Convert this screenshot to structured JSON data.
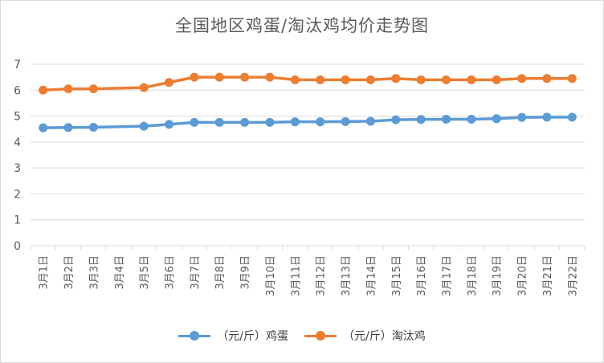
{
  "chart_data": {
    "type": "line",
    "title": "全国地区鸡蛋/淘汰鸡均价走势图",
    "categories": [
      "3月1日",
      "3月2日",
      "3月3日",
      "3月4日",
      "3月5日",
      "3月6日",
      "3月7日",
      "3月8日",
      "3月9日",
      "3月10日",
      "3月11日",
      "3月12日",
      "3月13日",
      "3月14日",
      "3月15日",
      "3月16日",
      "3月17日",
      "3月18日",
      "3月19日",
      "3月20日",
      "3月21日",
      "3月22日"
    ],
    "ylim": [
      0,
      7
    ],
    "yticks": [
      0,
      1,
      2,
      3,
      4,
      5,
      6,
      7
    ],
    "grid": true,
    "legend_position": "bottom",
    "series": [
      {
        "name": "（元/斤）鸡蛋",
        "color": "#5b9bd5",
        "values": [
          4.55,
          4.56,
          4.57,
          null,
          4.61,
          4.68,
          4.76,
          4.76,
          4.76,
          4.76,
          4.78,
          4.78,
          4.79,
          4.8,
          4.86,
          4.87,
          4.88,
          4.88,
          4.9,
          4.95,
          4.96,
          4.96
        ]
      },
      {
        "name": "（元/斤）淘汰鸡",
        "color": "#ed7d31",
        "values": [
          6.0,
          6.05,
          6.05,
          null,
          6.1,
          6.3,
          6.5,
          6.5,
          6.5,
          6.5,
          6.4,
          6.4,
          6.4,
          6.4,
          6.45,
          6.4,
          6.4,
          6.4,
          6.4,
          6.45,
          6.45,
          6.45
        ]
      }
    ]
  }
}
